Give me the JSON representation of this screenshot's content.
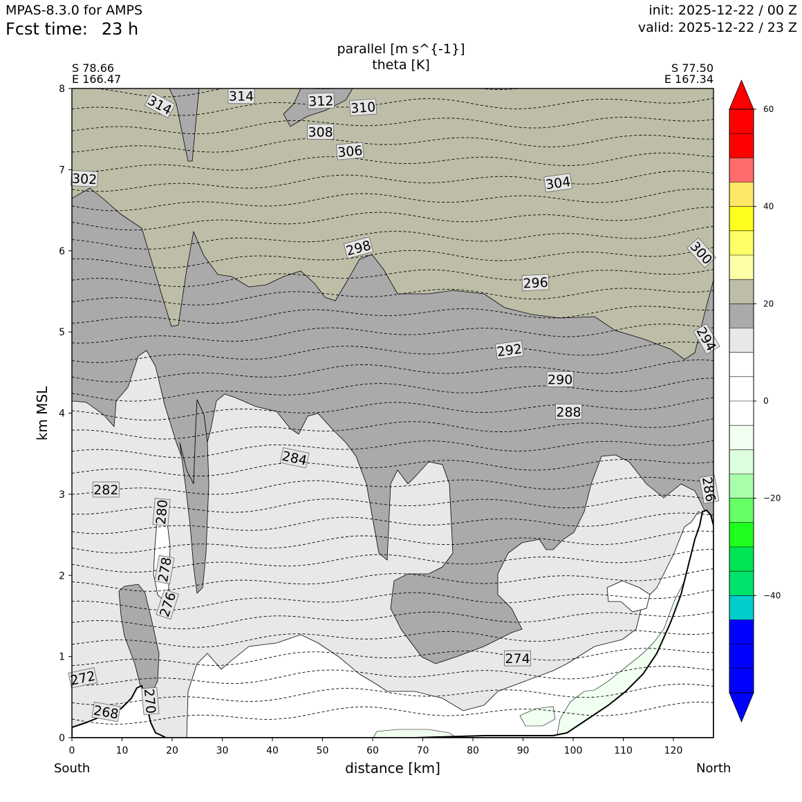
{
  "header": {
    "model": "MPAS-8.3.0 for AMPS",
    "fcst_label": "Fcst time:",
    "fcst_value": "23 h",
    "init": "init: 2025-12-22 / 00 Z",
    "valid": "valid: 2025-12-22 / 23 Z"
  },
  "chart_data": {
    "type": "heatmap",
    "title": "parallel [m s^{-1}]",
    "subtitle": "theta [K]",
    "xlabel": "distance [km]",
    "ylabel": "km MSL",
    "xlim": [
      0,
      128
    ],
    "ylim": [
      0,
      8
    ],
    "x_ticks": [
      0,
      10,
      20,
      30,
      40,
      50,
      60,
      70,
      80,
      90,
      100,
      110,
      120
    ],
    "y_ticks": [
      0,
      1,
      2,
      3,
      4,
      5,
      6,
      7,
      8
    ],
    "endpoints": {
      "left": {
        "lat": "S 78.66",
        "lon": "E 166.47",
        "direction": "South"
      },
      "right": {
        "lat": "S 77.50",
        "lon": "E 167.34",
        "direction": "North"
      }
    },
    "colorbar": {
      "levels": [
        -60,
        -55,
        -50,
        -45,
        -40,
        -35,
        -30,
        -25,
        -20,
        -15,
        -10,
        -5,
        0,
        5,
        10,
        15,
        20,
        25,
        30,
        35,
        40,
        45,
        50,
        55,
        60
      ],
      "colors": [
        "#0000ff",
        "#0000ff",
        "#0000ff",
        "#00cccc",
        "#00e36b",
        "#00e352",
        "#1eff1e",
        "#66ff66",
        "#aaffaa",
        "#ddffdd",
        "#f0fff0",
        "#ffffff",
        "#ffffff",
        "#ffffff",
        "#e8e8e8",
        "#aaaaaa",
        "#bebea8",
        "#ffffa8",
        "#ffff66",
        "#ffff1e",
        "#ffe766",
        "#ff6b6b",
        "#ff0000",
        "#ff0000"
      ],
      "tick_values": [
        60,
        40,
        20,
        0,
        -20,
        -40
      ],
      "tick_labels": [
        "60",
        "40",
        "20",
        "0",
        "−20",
        "−40"
      ],
      "extend": "both"
    },
    "theta_contour_labels": [
      {
        "value": "314",
        "x": 17.5,
        "y": 7.79,
        "rot": 28
      },
      {
        "value": "314",
        "x": 33.8,
        "y": 7.9,
        "rot": 0
      },
      {
        "value": "312",
        "x": 49.7,
        "y": 7.84,
        "rot": -2
      },
      {
        "value": "310",
        "x": 58.1,
        "y": 7.76,
        "rot": -4
      },
      {
        "value": "308",
        "x": 49.6,
        "y": 7.46,
        "rot": 0
      },
      {
        "value": "306",
        "x": 55.5,
        "y": 7.22,
        "rot": -5
      },
      {
        "value": "304",
        "x": 97.0,
        "y": 6.83,
        "rot": -8
      },
      {
        "value": "302",
        "x": 2.5,
        "y": 6.88,
        "rot": 3
      },
      {
        "value": "300",
        "x": 125.5,
        "y": 5.97,
        "rot": 48
      },
      {
        "value": "298",
        "x": 57.2,
        "y": 6.03,
        "rot": -15
      },
      {
        "value": "296",
        "x": 92.5,
        "y": 5.6,
        "rot": -3
      },
      {
        "value": "294",
        "x": 126.5,
        "y": 4.91,
        "rot": 60
      },
      {
        "value": "292",
        "x": 87.3,
        "y": 4.77,
        "rot": -8
      },
      {
        "value": "290",
        "x": 97.4,
        "y": 4.41,
        "rot": 0
      },
      {
        "value": "288",
        "x": 99.1,
        "y": 4.01,
        "rot": 0
      },
      {
        "value": "286",
        "x": 127.0,
        "y": 3.06,
        "rot": 80
      },
      {
        "value": "284",
        "x": 44.4,
        "y": 3.44,
        "rot": 12
      },
      {
        "value": "282",
        "x": 6.8,
        "y": 3.05,
        "rot": 0
      },
      {
        "value": "280",
        "x": 18.0,
        "y": 2.78,
        "rot": -85
      },
      {
        "value": "278",
        "x": 18.6,
        "y": 2.07,
        "rot": -80
      },
      {
        "value": "276",
        "x": 19.2,
        "y": 1.64,
        "rot": -72
      },
      {
        "value": "274",
        "x": 88.9,
        "y": 0.97,
        "rot": 0
      },
      {
        "value": "272",
        "x": 2.2,
        "y": 0.73,
        "rot": -12
      },
      {
        "value": "270",
        "x": 15.5,
        "y": 0.45,
        "rot": 85
      },
      {
        "value": "268",
        "x": 6.8,
        "y": 0.31,
        "rot": 10
      }
    ]
  }
}
